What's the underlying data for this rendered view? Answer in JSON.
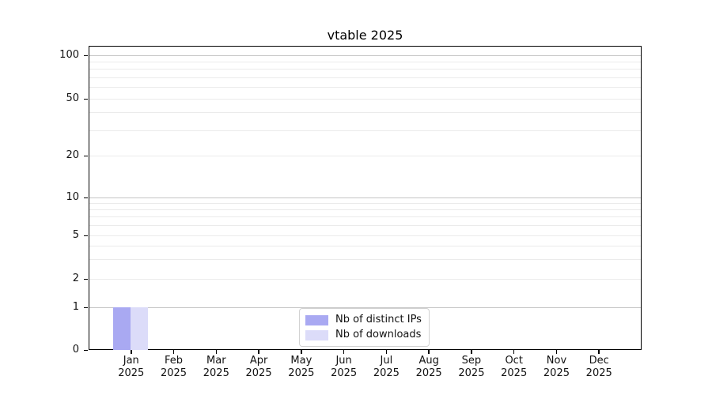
{
  "window": {
    "background": "#ffffff"
  },
  "chart_data": {
    "type": "bar",
    "title": "vtable 2025",
    "xlabel": "",
    "ylabel": "",
    "yscale": "symlog",
    "grid": "horizontal",
    "legend_position": "lower-center-inside",
    "categories": [
      "Jan 2025",
      "Feb 2025",
      "Mar 2025",
      "Apr 2025",
      "May 2025",
      "Jun 2025",
      "Jul 2025",
      "Aug 2025",
      "Sep 2025",
      "Oct 2025",
      "Nov 2025",
      "Dec 2025"
    ],
    "y_tick_labels": [
      "100",
      "50",
      "20",
      "10",
      "5",
      "2",
      "1",
      "0"
    ],
    "y_tick_values": [
      100,
      50,
      20,
      10,
      5,
      2,
      1,
      0
    ],
    "y_major_values": [
      1,
      10,
      100
    ],
    "y_minor_values": [
      2,
      3,
      4,
      5,
      6,
      7,
      8,
      9,
      20,
      30,
      40,
      50,
      60,
      70,
      80,
      90
    ],
    "ylim": [
      0,
      117
    ],
    "series": [
      {
        "name": "Nb of distinct IPs",
        "color": "#a9a9f2",
        "values": [
          1,
          0,
          0,
          0,
          0,
          0,
          0,
          0,
          0,
          0,
          0,
          0
        ]
      },
      {
        "name": "Nb of downloads",
        "color": "#dcdcf9",
        "values": [
          1,
          0,
          0,
          0,
          0,
          0,
          0,
          0,
          0,
          0,
          0,
          0
        ]
      }
    ]
  }
}
